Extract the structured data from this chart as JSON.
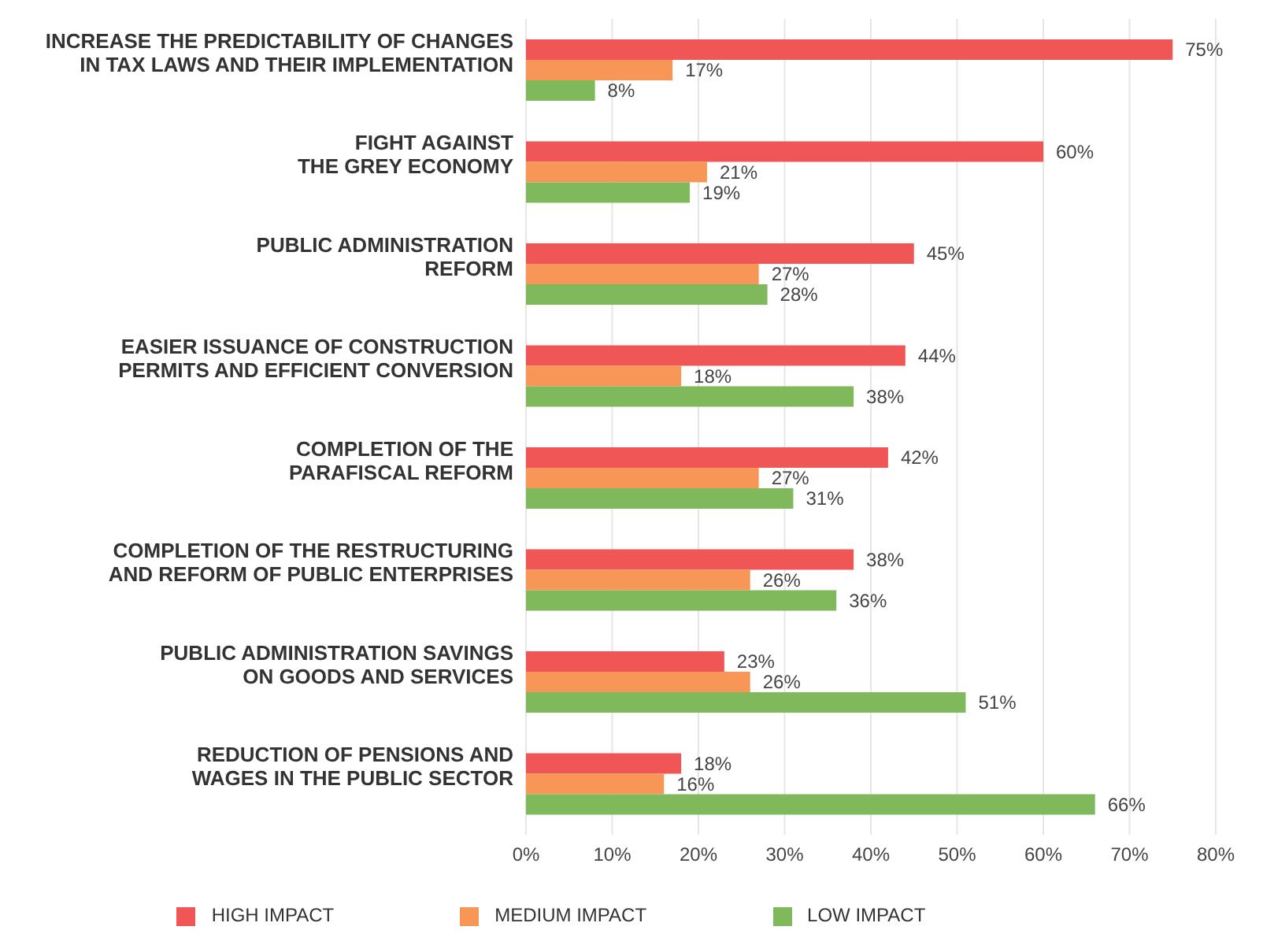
{
  "chart_data": {
    "type": "bar",
    "orientation": "horizontal",
    "categories": [
      "INCREASE THE PREDICTABILITY OF CHANGES\nIN TAX LAWS AND THEIR IMPLEMENTATION",
      "FIGHT AGAINST\nTHE GREY ECONOMY",
      "PUBLIC ADMINISTRATION\nREFORM",
      "EASIER ISSUANCE OF CONSTRUCTION\nPERMITS AND EFFICIENT CONVERSION",
      "COMPLETION OF THE\nPARAFISCAL REFORM",
      "COMPLETION OF THE RESTRUCTURING\nAND REFORM OF PUBLIC ENTERPRISES",
      "PUBLIC ADMINISTRATION SAVINGS\nON GOODS AND SERVICES",
      "REDUCTION OF PENSIONS AND\nWAGES IN THE PUBLIC SECTOR"
    ],
    "series": [
      {
        "name": "HIGH IMPACT",
        "color": "#f05656",
        "values": [
          75,
          60,
          45,
          44,
          42,
          38,
          23,
          18
        ],
        "value_labels": [
          "75%",
          "60%",
          "45%",
          "44%",
          "42%",
          "38%",
          "23%",
          "18%"
        ]
      },
      {
        "name": "MEDIUM IMPACT",
        "color": "#f79656",
        "values": [
          17,
          21,
          27,
          18,
          27,
          26,
          26,
          16
        ],
        "value_labels": [
          "17%",
          "21%",
          "27%",
          "18%",
          "27%",
          "26%",
          "26%",
          "16%"
        ]
      },
      {
        "name": "LOW IMPACT",
        "color": "#80b95c",
        "values": [
          8,
          19,
          28,
          38,
          31,
          36,
          51,
          66
        ],
        "value_labels": [
          "8%",
          "19%",
          "28%",
          "38%",
          "31%",
          "36%",
          "51%",
          "66%"
        ]
      }
    ],
    "xlim": [
      0,
      80
    ],
    "xticks": [
      {
        "value": 0,
        "label": "0%"
      },
      {
        "value": 10,
        "label": "10%"
      },
      {
        "value": 20,
        "label": "20%"
      },
      {
        "value": 30,
        "label": "30%"
      },
      {
        "value": 40,
        "label": "40%"
      },
      {
        "value": 50,
        "label": "50%"
      },
      {
        "value": 60,
        "label": "60%"
      },
      {
        "value": 70,
        "label": "70%"
      },
      {
        "value": 80,
        "label": "80%"
      }
    ],
    "grid": "x",
    "legend": "bottom"
  }
}
